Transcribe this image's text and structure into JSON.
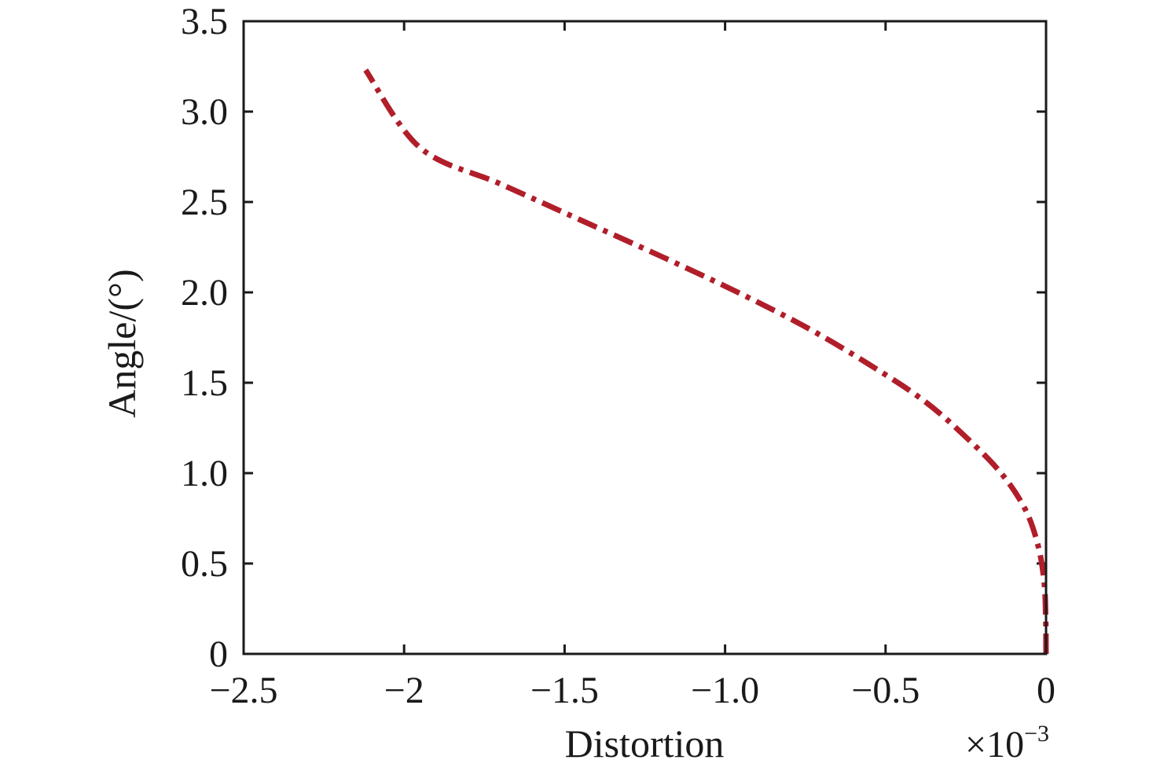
{
  "chart_data": {
    "type": "line",
    "title": "",
    "xlabel": "Distortion",
    "ylabel": "Angle/(°)",
    "x_multiplier": "×10",
    "x_multiplier_exponent": "−3",
    "xlim": [
      -2.5,
      0
    ],
    "ylim": [
      0,
      3.5
    ],
    "x_ticks": [
      -2.5,
      -2,
      -1.5,
      -1.0,
      -0.5,
      0
    ],
    "x_tick_labels": [
      "−2.5",
      "−2",
      "−1.5",
      "−1.0",
      "−0.5",
      "0"
    ],
    "y_ticks": [
      0,
      0.5,
      1.0,
      1.5,
      2.0,
      2.5,
      3.0,
      3.5
    ],
    "y_tick_labels": [
      "0",
      "0.5",
      "1.0",
      "1.5",
      "2.0",
      "2.5",
      "3.0",
      "3.5"
    ],
    "grid": false,
    "series": [
      {
        "line_style": "dash-dot",
        "color": "#b01e2a",
        "x": [
          0,
          -0.001,
          -0.006,
          -0.025,
          -0.065,
          -0.14,
          -0.25,
          -0.38,
          -0.55,
          -0.74,
          -0.96,
          -1.2,
          -1.45,
          -1.7,
          -1.95,
          -2.12
        ],
        "y": [
          0,
          0.2,
          0.4,
          0.6,
          0.8,
          1.0,
          1.2,
          1.4,
          1.6,
          1.8,
          2.0,
          2.2,
          2.4,
          2.6,
          2.8,
          3.23
        ]
      }
    ]
  }
}
